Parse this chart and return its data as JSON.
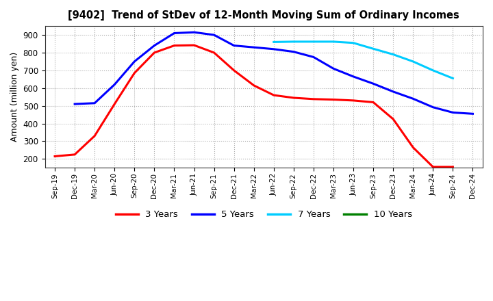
{
  "title": "[9402]  Trend of StDev of 12-Month Moving Sum of Ordinary Incomes",
  "ylabel": "Amount (million yen)",
  "ylim": [
    150,
    950
  ],
  "yticks": [
    200,
    300,
    400,
    500,
    600,
    700,
    800,
    900
  ],
  "x_labels": [
    "Sep-19",
    "Dec-19",
    "Mar-20",
    "Jun-20",
    "Sep-20",
    "Dec-20",
    "Mar-21",
    "Jun-21",
    "Sep-21",
    "Dec-21",
    "Mar-22",
    "Jun-22",
    "Sep-22",
    "Dec-22",
    "Mar-23",
    "Jun-23",
    "Sep-23",
    "Dec-23",
    "Mar-24",
    "Jun-24",
    "Sep-24",
    "Dec-24"
  ],
  "series": {
    "3 Years": {
      "color": "#FF0000",
      "data": [
        215,
        225,
        330,
        510,
        685,
        800,
        840,
        842,
        800,
        700,
        615,
        560,
        545,
        538,
        535,
        530,
        520,
        425,
        265,
        155,
        155,
        null
      ]
    },
    "5 Years": {
      "color": "#0000FF",
      "data": [
        null,
        510,
        515,
        620,
        750,
        840,
        910,
        915,
        900,
        840,
        830,
        820,
        805,
        775,
        710,
        665,
        625,
        580,
        540,
        492,
        462,
        455
      ]
    },
    "7 Years": {
      "color": "#00CCFF",
      "data": [
        null,
        null,
        null,
        null,
        null,
        null,
        null,
        null,
        null,
        null,
        null,
        860,
        862,
        862,
        862,
        855,
        822,
        790,
        750,
        700,
        655,
        null
      ]
    },
    "10 Years": {
      "color": "#008000",
      "data": [
        null,
        null,
        null,
        null,
        null,
        null,
        null,
        null,
        null,
        null,
        null,
        null,
        null,
        null,
        null,
        null,
        null,
        null,
        null,
        null,
        null,
        null
      ]
    }
  },
  "legend_labels": [
    "3 Years",
    "5 Years",
    "7 Years",
    "10 Years"
  ],
  "legend_colors": [
    "#FF0000",
    "#0000FF",
    "#00CCFF",
    "#008000"
  ],
  "background_color": "#FFFFFF",
  "grid_color": "#B0B0B0"
}
